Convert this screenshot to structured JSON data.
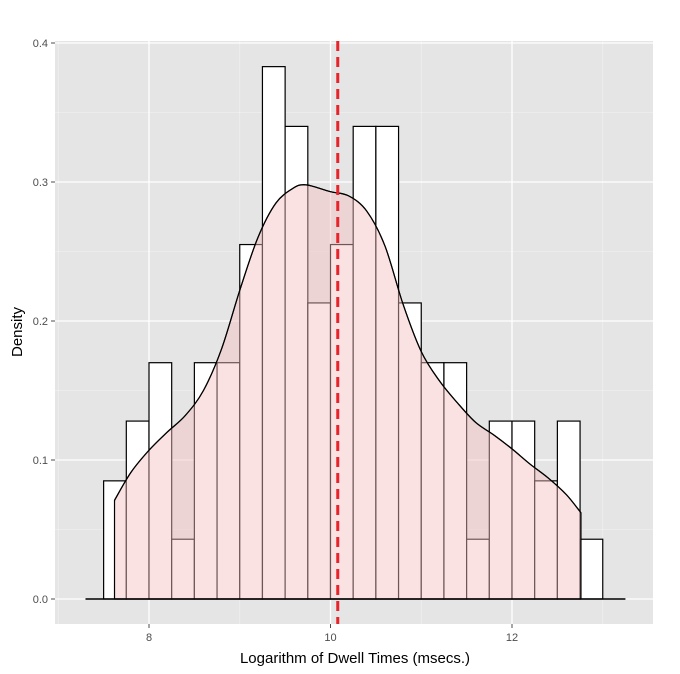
{
  "chart_data": {
    "type": "histogram",
    "xlabel": "Logarithm of Dwell Times (msecs.)",
    "ylabel": "Density",
    "xlim": [
      7.0,
      13.5
    ],
    "ylim": [
      -0.02,
      0.405
    ],
    "x_ticks": [
      8,
      10,
      12
    ],
    "y_ticks": [
      0.0,
      0.1,
      0.2,
      0.3,
      0.4
    ],
    "x_tick_labels": [
      "8",
      "10",
      "12"
    ],
    "y_tick_labels": [
      "0.0",
      "0.1",
      "0.2",
      "0.3",
      "0.4"
    ],
    "grid": true,
    "histogram": {
      "bin_width": 0.25,
      "bins": [
        {
          "x0": 7.5,
          "x1": 7.75,
          "density": 0.085
        },
        {
          "x0": 7.75,
          "x1": 8.0,
          "density": 0.128
        },
        {
          "x0": 8.0,
          "x1": 8.25,
          "density": 0.17
        },
        {
          "x0": 8.25,
          "x1": 8.5,
          "density": 0.043
        },
        {
          "x0": 8.5,
          "x1": 8.75,
          "density": 0.17
        },
        {
          "x0": 8.75,
          "x1": 9.0,
          "density": 0.17
        },
        {
          "x0": 9.0,
          "x1": 9.25,
          "density": 0.255
        },
        {
          "x0": 9.25,
          "x1": 9.5,
          "density": 0.383
        },
        {
          "x0": 9.5,
          "x1": 9.75,
          "density": 0.34
        },
        {
          "x0": 9.75,
          "x1": 10.0,
          "density": 0.213
        },
        {
          "x0": 10.0,
          "x1": 10.25,
          "density": 0.255
        },
        {
          "x0": 10.25,
          "x1": 10.5,
          "density": 0.34
        },
        {
          "x0": 10.5,
          "x1": 10.75,
          "density": 0.34
        },
        {
          "x0": 10.75,
          "x1": 11.0,
          "density": 0.213
        },
        {
          "x0": 11.0,
          "x1": 11.25,
          "density": 0.17
        },
        {
          "x0": 11.25,
          "x1": 11.5,
          "density": 0.17
        },
        {
          "x0": 11.5,
          "x1": 11.75,
          "density": 0.043
        },
        {
          "x0": 11.75,
          "x1": 12.0,
          "density": 0.128
        },
        {
          "x0": 12.0,
          "x1": 12.25,
          "density": 0.128
        },
        {
          "x0": 12.25,
          "x1": 12.5,
          "density": 0.085
        },
        {
          "x0": 12.5,
          "x1": 12.75,
          "density": 0.128
        },
        {
          "x0": 12.75,
          "x1": 13.0,
          "density": 0.043
        }
      ]
    },
    "density_curve": {
      "x": [
        7.62,
        7.8,
        8.0,
        8.2,
        8.4,
        8.6,
        8.8,
        9.0,
        9.2,
        9.4,
        9.6,
        9.7,
        9.8,
        10.0,
        10.2,
        10.4,
        10.6,
        10.8,
        11.0,
        11.2,
        11.4,
        11.6,
        11.8,
        12.0,
        12.2,
        12.4,
        12.6,
        12.76
      ],
      "y": [
        0.071,
        0.091,
        0.107,
        0.12,
        0.132,
        0.15,
        0.18,
        0.222,
        0.26,
        0.285,
        0.296,
        0.298,
        0.297,
        0.293,
        0.29,
        0.279,
        0.254,
        0.212,
        0.178,
        0.157,
        0.141,
        0.127,
        0.118,
        0.108,
        0.097,
        0.087,
        0.075,
        0.062
      ]
    },
    "baseline": {
      "x_start": 7.3,
      "x_end": 13.25,
      "y": 0.0
    },
    "mean_line": {
      "x": 10.08,
      "style": "dashed"
    },
    "colors": {
      "panel_background": "#e5e5e5",
      "grid": "#ffffff",
      "histogram_fill": "#ffffff",
      "histogram_stroke": "#000000",
      "density_fill": "#f4bfbf",
      "density_fill_opacity": 0.45,
      "density_stroke": "#000000",
      "mean_line": "#e8232a"
    }
  }
}
